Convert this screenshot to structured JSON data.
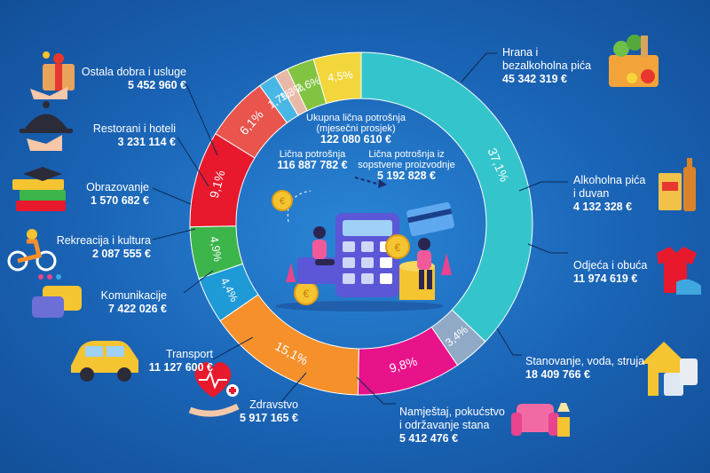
{
  "chart_data": {
    "type": "pie",
    "title": "",
    "center": {
      "total_label": "Ukupna lična potrošnja",
      "total_sub": "(mjesečni prosjek)",
      "total_value": "122 080 610 €",
      "personal_label": "Lična potrošnja",
      "personal_value": "116 887 782 €",
      "own_label": "Lična potrošnja iz sopstvene proizvodnje",
      "own_value": "5 192 828 €"
    },
    "slices": [
      {
        "name": "Hrana i bezalkoholna pića",
        "percent": 37.1,
        "percent_label": "37,1%",
        "value": "45 342 319 €",
        "color": "#34c5cc"
      },
      {
        "name": "Alkoholna pića i duvan",
        "percent": 3.4,
        "percent_label": "3,4%",
        "value": "4 132 328 €",
        "color": "#8fa9c6"
      },
      {
        "name": "Odjeća i obuća",
        "percent": 9.8,
        "percent_label": "9,8%",
        "value": "11 974 619 €",
        "color": "#e8128a"
      },
      {
        "name": "Stanovanje, voda, struja",
        "percent": 15.1,
        "percent_label": "15,1%",
        "value": "18 409 766 €",
        "color": "#f5902b"
      },
      {
        "name": "Namještaj, pokućstvo i održavanje stana",
        "percent": 4.4,
        "percent_label": "4,4%",
        "value": "5 412 476 €",
        "color": "#1e9ad6"
      },
      {
        "name": "Zdravstvo",
        "percent": 4.9,
        "percent_label": "4,9%",
        "value": "5 917 165 €",
        "color": "#3cb54a"
      },
      {
        "name": "Transport",
        "percent": 9.1,
        "percent_label": "9,1%",
        "value": "11 127 600 €",
        "color": "#e8192c"
      },
      {
        "name": "Komunikacije",
        "percent": 6.1,
        "percent_label": "6,1%",
        "value": "7 422 026 €",
        "color": "#e9544d"
      },
      {
        "name": "Rekreacija i kultura",
        "percent": 1.7,
        "percent_label": "1,7%",
        "value": "2 087 555 €",
        "color": "#49b7e6"
      },
      {
        "name": "Obrazovanje",
        "percent": 1.3,
        "percent_label": "1,3%",
        "value": "1 570 682 €",
        "color": "#e9b9a7"
      },
      {
        "name": "Restorani i hoteli",
        "percent": 2.6,
        "percent_label": "2,6%",
        "value": "3 231 114 €",
        "color": "#82c341"
      },
      {
        "name": "Ostala dobra i usluge",
        "percent": 4.5,
        "percent_label": "4,5%",
        "value": "5 452 960 €",
        "color": "#f2d63c"
      }
    ]
  },
  "labels": {
    "food_1": "Hrana i",
    "food_2": "bezalkoholna pića",
    "alcohol_1": "Alkoholna pića",
    "alcohol_2": "i duvan",
    "clothes": "Odjeća i obuća",
    "housing": "Stanovanje, voda, struja",
    "furniture_1": "Namještaj, pokućstvo",
    "furniture_2": "i održavanje stana",
    "health": "Zdravstvo",
    "transport": "Transport",
    "comms": "Komunikacije",
    "recreation": "Rekreacija i kultura",
    "education": "Obrazovanje",
    "restaurants": "Restorani i hoteli",
    "other": "Ostala dobra i usluge",
    "own_1": "Lična potrošnja iz",
    "own_2": "sopstvene proizvodnje"
  },
  "icons": [
    "grocery-bag-icon",
    "bottles-icon",
    "shirt-shoe-icon",
    "house-icon",
    "armchair-icon",
    "heart-health-icon",
    "car-icon",
    "chat-bubbles-icon",
    "cyclist-icon",
    "books-icon",
    "cloche-icon",
    "gift-box-icon",
    "calculator-illustration"
  ]
}
